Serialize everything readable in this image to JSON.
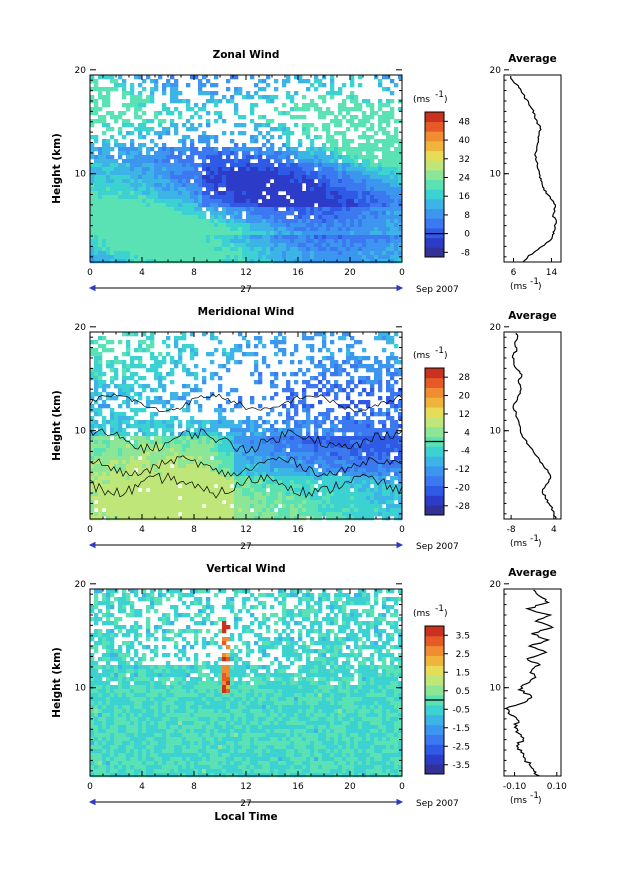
{
  "chart_data": [
    {
      "type": "heatmap",
      "title": "Zonal Wind",
      "ylabel": "Height (km)",
      "xlabel": "",
      "x_ticks": [
        "0",
        "4",
        "8",
        "12",
        "16",
        "20",
        "0"
      ],
      "xlim": [
        0,
        24
      ],
      "y_ticks": [
        "10",
        "20"
      ],
      "ylim": [
        1.5,
        19.5
      ],
      "date_center": "27",
      "date_right": "Sep 2007",
      "colorbar_unit": "(ms",
      "colorbar_unit_exp": "-1",
      "colorbar_ticks": [
        "48",
        "40",
        "32",
        "24",
        "16",
        "8",
        "0",
        "-8"
      ],
      "colorbar_range": [
        -10,
        52
      ],
      "profile": {
        "title": "Average",
        "xlabel": "(ms",
        "xlabel_exp": "-1",
        "x_ticks": [
          "6",
          "14"
        ],
        "xlim": [
          4,
          16
        ],
        "y_ticks": [
          "10",
          "20"
        ],
        "ylim": [
          1.5,
          19.5
        ],
        "points": [
          [
            8,
            1.5
          ],
          [
            9,
            2.0
          ],
          [
            10.5,
            2.5
          ],
          [
            12,
            3.0
          ],
          [
            13.5,
            3.5
          ],
          [
            14.2,
            4.0
          ],
          [
            14.6,
            4.5
          ],
          [
            15.0,
            5.5
          ],
          [
            14.3,
            6.0
          ],
          [
            14.8,
            6.8
          ],
          [
            14.0,
            7.5
          ],
          [
            13.2,
            8.0
          ],
          [
            12.4,
            8.6
          ],
          [
            12.0,
            9.2
          ],
          [
            11.6,
            9.8
          ],
          [
            11.2,
            10.4
          ],
          [
            10.8,
            11.2
          ],
          [
            10.6,
            12.0
          ],
          [
            10.9,
            12.6
          ],
          [
            11.2,
            13.2
          ],
          [
            11.4,
            13.8
          ],
          [
            11.6,
            14.4
          ],
          [
            11.0,
            15.0
          ],
          [
            10.5,
            15.6
          ],
          [
            10.0,
            16.2
          ],
          [
            9.2,
            16.8
          ],
          [
            8.3,
            17.4
          ],
          [
            7.6,
            18.0
          ],
          [
            6.6,
            18.6
          ],
          [
            5.8,
            19.0
          ],
          [
            5.4,
            19.4
          ]
        ]
      }
    },
    {
      "type": "heatmap",
      "title": "Meridional Wind",
      "ylabel": "Height (km)",
      "xlabel": "",
      "x_ticks": [
        "0",
        "4",
        "8",
        "12",
        "16",
        "20",
        "0"
      ],
      "xlim": [
        0,
        24
      ],
      "y_ticks": [
        "10",
        "20"
      ],
      "ylim": [
        1.5,
        19.5
      ],
      "date_center": "27",
      "date_right": "Sep 2007",
      "colorbar_unit": "(ms",
      "colorbar_unit_exp": "-1",
      "colorbar_ticks": [
        "28",
        "20",
        "12",
        "4",
        "-4",
        "-12",
        "-20",
        "-28"
      ],
      "colorbar_range": [
        -32,
        32
      ],
      "profile": {
        "title": "Average",
        "xlabel": "(ms",
        "xlabel_exp": "-1",
        "x_ticks": [
          "-8",
          "4"
        ],
        "xlim": [
          -10,
          6
        ],
        "y_ticks": [
          "10",
          "20"
        ],
        "ylim": [
          1.5,
          19.5
        ],
        "points": [
          [
            4.5,
            1.5
          ],
          [
            4.0,
            2.2
          ],
          [
            2.6,
            3.0
          ],
          [
            1.6,
            3.6
          ],
          [
            0.8,
            4.2
          ],
          [
            1.8,
            4.8
          ],
          [
            3.0,
            5.4
          ],
          [
            2.4,
            6.0
          ],
          [
            0.8,
            6.8
          ],
          [
            -1.0,
            7.6
          ],
          [
            -2.6,
            8.4
          ],
          [
            -4.2,
            9.2
          ],
          [
            -5.4,
            10.0
          ],
          [
            -5.8,
            10.8
          ],
          [
            -6.6,
            11.6
          ],
          [
            -7.4,
            12.4
          ],
          [
            -6.2,
            13.2
          ],
          [
            -5.2,
            14.0
          ],
          [
            -6.0,
            14.8
          ],
          [
            -5.0,
            15.4
          ],
          [
            -6.6,
            16.0
          ],
          [
            -7.2,
            16.6
          ],
          [
            -7.6,
            17.2
          ],
          [
            -6.4,
            17.8
          ],
          [
            -7.0,
            18.4
          ],
          [
            -6.2,
            19.0
          ],
          [
            -6.6,
            19.4
          ]
        ]
      }
    },
    {
      "type": "heatmap",
      "title": "Vertical Wind",
      "ylabel": "Height (km)",
      "xlabel": "Local Time",
      "x_ticks": [
        "0",
        "4",
        "8",
        "12",
        "16",
        "20",
        "0"
      ],
      "xlim": [
        0,
        24
      ],
      "y_ticks": [
        "10",
        "20"
      ],
      "ylim": [
        1.5,
        19.5
      ],
      "date_center": "27",
      "date_right": "Sep 2007",
      "colorbar_unit": "(ms",
      "colorbar_unit_exp": "-1",
      "colorbar_ticks": [
        "3.5",
        "2.5",
        "1.5",
        "0.5",
        "-0.5",
        "-1.5",
        "-2.5",
        "-3.5"
      ],
      "colorbar_range": [
        -4,
        4
      ],
      "profile": {
        "title": "Average",
        "xlabel": "(ms",
        "xlabel_exp": "-1",
        "x_ticks": [
          "-0.10",
          "0.10"
        ],
        "xlim": [
          -0.15,
          0.12
        ],
        "y_ticks": [
          "10",
          "20"
        ],
        "ylim": [
          1.5,
          19.5
        ],
        "points": [
          [
            0.02,
            1.5
          ],
          [
            -0.01,
            2.0
          ],
          [
            -0.03,
            2.6
          ],
          [
            -0.05,
            3.2
          ],
          [
            -0.07,
            3.8
          ],
          [
            -0.09,
            4.4
          ],
          [
            -0.06,
            5.0
          ],
          [
            -0.08,
            5.6
          ],
          [
            -0.1,
            6.2
          ],
          [
            -0.08,
            6.8
          ],
          [
            -0.12,
            7.4
          ],
          [
            -0.14,
            8.0
          ],
          [
            -0.05,
            8.6
          ],
          [
            -0.02,
            9.2
          ],
          [
            -0.08,
            9.8
          ],
          [
            -0.04,
            10.4
          ],
          [
            0.0,
            11.0
          ],
          [
            -0.02,
            11.6
          ],
          [
            0.02,
            12.2
          ],
          [
            -0.04,
            12.8
          ],
          [
            0.05,
            13.4
          ],
          [
            -0.03,
            14.0
          ],
          [
            0.06,
            14.6
          ],
          [
            -0.02,
            15.2
          ],
          [
            0.08,
            15.8
          ],
          [
            0.0,
            16.4
          ],
          [
            0.07,
            17.0
          ],
          [
            -0.04,
            17.6
          ],
          [
            0.06,
            18.2
          ],
          [
            0.02,
            18.8
          ],
          [
            -0.01,
            19.4
          ]
        ]
      }
    }
  ]
}
